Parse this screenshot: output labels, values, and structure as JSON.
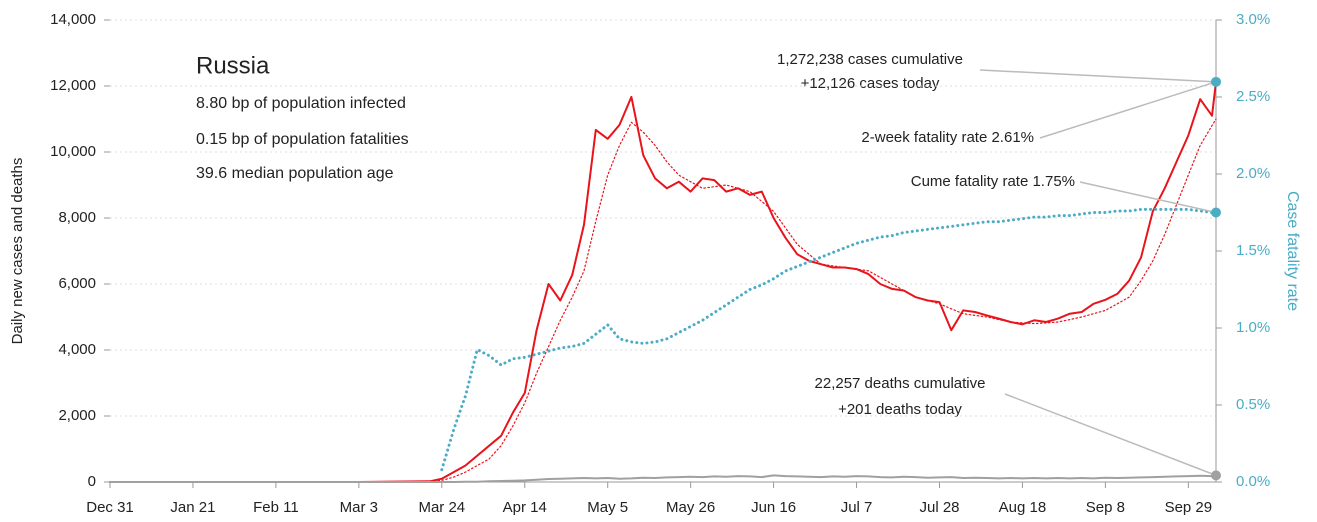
{
  "chart_data": {
    "type": "line",
    "info": {
      "title": "Russia",
      "lines": [
        "8.80 bp of population infected",
        "0.15 bp of population fatalities",
        "39.6 median population age"
      ]
    },
    "ylabel": "Daily new cases and deaths",
    "y2label": "Case fatality rate",
    "x": [
      0,
      21,
      42,
      63,
      81,
      84,
      87,
      90,
      93,
      96,
      99,
      102,
      105,
      108,
      111,
      114,
      117,
      120,
      123,
      126,
      129,
      132,
      135,
      138,
      141,
      144,
      147,
      150,
      153,
      156,
      159,
      162,
      165,
      168,
      171,
      174,
      177,
      180,
      183,
      186,
      189,
      192,
      195,
      198,
      201,
      204,
      207,
      210,
      213,
      216,
      219,
      222,
      225,
      228,
      231,
      234,
      237,
      240,
      243,
      246,
      249,
      252,
      255,
      258,
      261,
      264,
      267,
      270,
      273,
      276,
      279,
      280
    ],
    "xlim": [
      0,
      280
    ],
    "xticks": [
      {
        "value": 0,
        "label": "Dec 31"
      },
      {
        "value": 21,
        "label": "Jan 21"
      },
      {
        "value": 42,
        "label": "Feb 11"
      },
      {
        "value": 63,
        "label": "Mar 3"
      },
      {
        "value": 84,
        "label": "Mar 24"
      },
      {
        "value": 105,
        "label": "Apr 14"
      },
      {
        "value": 126,
        "label": "May 5"
      },
      {
        "value": 147,
        "label": "May 26"
      },
      {
        "value": 168,
        "label": "Jun 16"
      },
      {
        "value": 189,
        "label": "Jul 7"
      },
      {
        "value": 210,
        "label": "Jul 28"
      },
      {
        "value": 231,
        "label": "Aug 18"
      },
      {
        "value": 252,
        "label": "Sep 8"
      },
      {
        "value": 273,
        "label": "Sep 29"
      }
    ],
    "ylim": [
      0,
      14000
    ],
    "yticks": [
      0,
      {
        "value": 2000,
        "label": "2,000"
      },
      {
        "value": 4000,
        "label": "4,000"
      },
      {
        "value": 6000,
        "label": "6,000"
      },
      {
        "value": 8000,
        "label": "8,000"
      },
      {
        "value": 10000,
        "label": "10,000"
      },
      {
        "value": 12000,
        "label": "12,000"
      },
      {
        "value": 14000,
        "label": "14,000"
      }
    ],
    "y2lim": [
      0,
      3
    ],
    "y2ticks": [
      {
        "value": 0,
        "label": "0.0%"
      },
      {
        "value": 0.5,
        "label": "0.5%"
      },
      {
        "value": 1,
        "label": "1.0%"
      },
      {
        "value": 1.5,
        "label": "1.5%"
      },
      {
        "value": 2,
        "label": "2.0%"
      },
      {
        "value": 2.5,
        "label": "2.5%"
      },
      {
        "value": 3,
        "label": "3.0%"
      }
    ],
    "grid": true,
    "series": [
      {
        "color": "#e8141b",
        "style": "solid",
        "values": [
          0,
          0,
          0,
          0,
          20,
          100,
          300,
          500,
          800,
          1100,
          1400,
          2100,
          2700,
          4600,
          6000,
          5500,
          6270,
          7800,
          10670,
          10400,
          10820,
          11670,
          9900,
          9200,
          8900,
          9100,
          8800,
          9200,
          9150,
          8800,
          8900,
          8700,
          8800,
          8000,
          7400,
          6900,
          6700,
          6600,
          6500,
          6500,
          6450,
          6300,
          6000,
          5850,
          5800,
          5600,
          5500,
          5450,
          4600,
          5200,
          5150,
          5050,
          4950,
          4850,
          4780,
          4900,
          4850,
          4950,
          5100,
          5150,
          5400,
          5520,
          5700,
          6100,
          6800,
          8200,
          8900,
          9700,
          10500,
          11600,
          11100,
          12126
        ]
      },
      {
        "color": "#e8141b",
        "style": "dotted",
        "values": [
          0,
          0,
          0,
          0,
          20,
          50,
          150,
          300,
          500,
          700,
          1100,
          1700,
          2400,
          3300,
          4100,
          4900,
          5600,
          6400,
          7900,
          9300,
          10200,
          10900,
          10600,
          10200,
          9700,
          9300,
          9100,
          8900,
          8950,
          9000,
          8900,
          8800,
          8500,
          8200,
          7700,
          7200,
          6900,
          6600,
          6550,
          6500,
          6450,
          6400,
          6200,
          6000,
          5800,
          5600,
          5500,
          5400,
          5250,
          5100,
          5050,
          5000,
          4920,
          4850,
          4820,
          4800,
          4820,
          4850,
          4920,
          5000,
          5100,
          5200,
          5400,
          5600,
          6100,
          6700,
          7500,
          8400,
          9300,
          10200,
          10800,
          11000
        ]
      },
      {
        "color": "#4bacc6",
        "style": "dotted",
        "axis": "y2",
        "values": [
          null,
          null,
          null,
          null,
          null,
          0.08,
          0.34,
          0.56,
          0.86,
          0.82,
          0.76,
          0.8,
          0.81,
          0.83,
          0.85,
          0.87,
          0.88,
          0.9,
          0.96,
          1.02,
          0.93,
          0.91,
          0.9,
          0.91,
          0.93,
          0.97,
          1.01,
          1.05,
          1.1,
          1.15,
          1.2,
          1.25,
          1.28,
          1.32,
          1.37,
          1.4,
          1.43,
          1.46,
          1.49,
          1.52,
          1.55,
          1.57,
          1.59,
          1.6,
          1.62,
          1.63,
          1.64,
          1.65,
          1.66,
          1.67,
          1.68,
          1.69,
          1.69,
          1.7,
          1.71,
          1.72,
          1.72,
          1.73,
          1.73,
          1.74,
          1.75,
          1.75,
          1.76,
          1.76,
          1.77,
          1.77,
          1.77,
          1.77,
          1.77,
          1.76,
          1.75,
          1.75
        ]
      },
      {
        "color": "#a0a0a0",
        "style": "solid",
        "values": [
          0,
          0,
          0,
          0,
          0,
          0,
          0,
          5,
          10,
          20,
          30,
          40,
          50,
          70,
          90,
          100,
          110,
          120,
          110,
          120,
          100,
          110,
          130,
          120,
          140,
          150,
          160,
          150,
          170,
          160,
          180,
          170,
          150,
          200,
          180,
          170,
          160,
          150,
          170,
          160,
          180,
          170,
          150,
          140,
          160,
          150,
          130,
          140,
          150,
          120,
          130,
          120,
          110,
          120,
          110,
          120,
          110,
          120,
          110,
          120,
          110,
          130,
          120,
          130,
          140,
          150,
          160,
          170,
          180,
          190,
          180,
          201
        ]
      }
    ],
    "annotations": {
      "cases": [
        "1,272,238 cases cumulative",
        "+12,126 cases today"
      ],
      "two_week_rate": "2-week fatality rate 2.61%",
      "cume_rate": "Cume fatality rate 1.75%",
      "deaths": [
        "22,257 deaths cumulative",
        "+201 deaths today"
      ]
    }
  }
}
